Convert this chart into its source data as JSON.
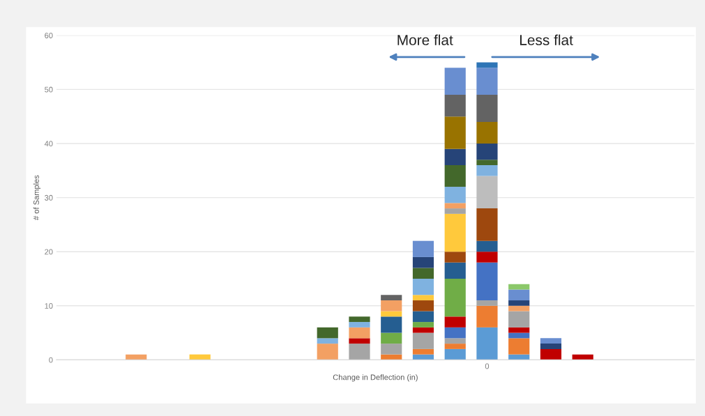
{
  "chart_data": {
    "type": "bar",
    "stacked": true,
    "xlabel": "Change in Deflection (in)",
    "ylabel": "# of Samples",
    "categories": [
      null,
      null,
      null,
      null,
      null,
      null,
      null,
      null,
      null,
      null,
      null,
      null,
      null,
      "0",
      null,
      null,
      null,
      null,
      null,
      null
    ],
    "ylim": [
      0,
      60
    ],
    "yticks": [
      0,
      10,
      20,
      30,
      40,
      50,
      60
    ],
    "grid": "y",
    "annotations": [
      "More flat",
      "Less flat"
    ],
    "series": [
      {
        "values": [
          null,
          null,
          1,
          null,
          1,
          null,
          null,
          null,
          3,
          3,
          1,
          1,
          2,
          6,
          1,
          2,
          1,
          null,
          null,
          null
        ],
        "colors": [
          null,
          null,
          "#f3a063",
          null,
          "#ffc93c",
          null,
          null,
          null,
          "#f3a063",
          "#a5a5a5",
          "#ed7d31",
          "#5b9bd5",
          "#5b9bd5",
          "#5b9bd5",
          "#5b9bd5",
          "#c00000",
          "#c00000",
          null,
          null,
          null
        ]
      },
      {
        "values": [
          null,
          null,
          null,
          null,
          null,
          null,
          null,
          null,
          1,
          1,
          2,
          1,
          1,
          4,
          3,
          1,
          null,
          null,
          null,
          null
        ],
        "colors": [
          null,
          null,
          null,
          null,
          null,
          null,
          null,
          null,
          "#7fb2e0",
          "#c00000",
          "#a5a5a5",
          "#ed7d31",
          "#ed7d31",
          "#ed7d31",
          "#ed7d31",
          "#264478",
          null,
          null,
          null,
          null
        ]
      },
      {
        "values": [
          null,
          null,
          null,
          null,
          null,
          null,
          null,
          null,
          2,
          2,
          2,
          3,
          1,
          1,
          1,
          1,
          null,
          null,
          null,
          null
        ],
        "colors": [
          null,
          null,
          null,
          null,
          null,
          null,
          null,
          null,
          "#43682b",
          "#f3a063",
          "#70ad47",
          "#a5a5a5",
          "#a5a5a5",
          "#a5a5a5",
          "#4472c4",
          "#698ed0",
          null,
          null,
          null,
          null
        ]
      },
      {
        "values": [
          null,
          null,
          null,
          null,
          null,
          null,
          null,
          null,
          null,
          1,
          3,
          1,
          2,
          7,
          1,
          null,
          null,
          null,
          null,
          null
        ],
        "colors": [
          null,
          null,
          null,
          null,
          null,
          null,
          null,
          null,
          null,
          "#7fb2e0",
          "#255e91",
          "#c00000",
          "#4472c4",
          "#4472c4",
          "#c00000",
          null,
          null,
          null,
          null,
          null
        ]
      },
      {
        "values": [
          null,
          null,
          null,
          null,
          null,
          null,
          null,
          null,
          null,
          1,
          1,
          1,
          2,
          2,
          3,
          null,
          null,
          null,
          null,
          null
        ],
        "colors": [
          null,
          null,
          null,
          null,
          null,
          null,
          null,
          null,
          null,
          "#43682b",
          "#ffc93c",
          "#70ad47",
          "#c00000",
          "#c00000",
          "#a5a5a5",
          null,
          null,
          null,
          null,
          null
        ]
      },
      {
        "values": [
          null,
          null,
          null,
          null,
          null,
          null,
          null,
          null,
          null,
          null,
          2,
          2,
          7,
          2,
          1,
          null,
          null,
          null,
          null,
          null
        ],
        "colors": [
          null,
          null,
          null,
          null,
          null,
          null,
          null,
          null,
          null,
          null,
          "#f3a063",
          "#255e91",
          "#70ad47",
          "#255e91",
          "#f3a063",
          null,
          null,
          null,
          null,
          null
        ]
      },
      {
        "values": [
          null,
          null,
          null,
          null,
          null,
          null,
          null,
          null,
          null,
          null,
          1,
          2,
          3,
          6,
          1,
          null,
          null,
          null,
          null,
          null
        ],
        "colors": [
          null,
          null,
          null,
          null,
          null,
          null,
          null,
          null,
          null,
          null,
          "#636363",
          "#9e480e",
          "#255e91",
          "#9e480e",
          "#264478",
          null,
          null,
          null,
          null,
          null
        ]
      },
      {
        "values": [
          null,
          null,
          null,
          null,
          null,
          null,
          null,
          null,
          null,
          null,
          null,
          1,
          2,
          6,
          2,
          null,
          null,
          null,
          null,
          null
        ],
        "colors": [
          null,
          null,
          null,
          null,
          null,
          null,
          null,
          null,
          null,
          null,
          null,
          "#ffc93c",
          "#9e480e",
          "#bdbdbd",
          "#698ed0",
          null,
          null,
          null,
          null,
          null
        ]
      },
      {
        "values": [
          null,
          null,
          null,
          null,
          null,
          null,
          null,
          null,
          null,
          null,
          null,
          3,
          7,
          2,
          1,
          null,
          null,
          null,
          null,
          null
        ],
        "colors": [
          null,
          null,
          null,
          null,
          null,
          null,
          null,
          null,
          null,
          null,
          null,
          "#7fb2e0",
          "#ffc93c",
          "#7fb2e0",
          "#8bc86a",
          null,
          null,
          null,
          null,
          null
        ]
      },
      {
        "values": [
          null,
          null,
          null,
          null,
          null,
          null,
          null,
          null,
          null,
          null,
          null,
          2,
          1,
          1,
          null,
          null,
          null,
          null,
          null,
          null
        ],
        "colors": [
          null,
          null,
          null,
          null,
          null,
          null,
          null,
          null,
          null,
          null,
          null,
          "#43682b",
          "#a5a5a5",
          "#43682b",
          null,
          null,
          null,
          null,
          null,
          null
        ]
      },
      {
        "values": [
          null,
          null,
          null,
          null,
          null,
          null,
          null,
          null,
          null,
          null,
          null,
          2,
          1,
          3,
          null,
          null,
          null,
          null,
          null,
          null
        ],
        "colors": [
          null,
          null,
          null,
          null,
          null,
          null,
          null,
          null,
          null,
          null,
          null,
          "#264478",
          "#f3a063",
          "#264478",
          null,
          null,
          null,
          null,
          null,
          null
        ]
      },
      {
        "values": [
          null,
          null,
          null,
          null,
          null,
          null,
          null,
          null,
          null,
          null,
          null,
          3,
          3,
          4,
          null,
          null,
          null,
          null,
          null,
          null
        ],
        "colors": [
          null,
          null,
          null,
          null,
          null,
          null,
          null,
          null,
          null,
          null,
          null,
          "#698ed0",
          "#7fb2e0",
          "#997300",
          null,
          null,
          null,
          null,
          null,
          null
        ]
      },
      {
        "values": [
          null,
          null,
          null,
          null,
          null,
          null,
          null,
          null,
          null,
          null,
          null,
          null,
          4,
          5,
          null,
          null,
          null,
          null,
          null,
          null
        ],
        "colors": [
          null,
          null,
          null,
          null,
          null,
          null,
          null,
          null,
          null,
          null,
          null,
          null,
          "#43682b",
          "#636363",
          null,
          null,
          null,
          null,
          null,
          null
        ]
      },
      {
        "values": [
          null,
          null,
          null,
          null,
          null,
          null,
          null,
          null,
          null,
          null,
          null,
          null,
          3,
          5,
          null,
          null,
          null,
          null,
          null,
          null
        ],
        "colors": [
          null,
          null,
          null,
          null,
          null,
          null,
          null,
          null,
          null,
          null,
          null,
          null,
          "#264478",
          "#698ed0",
          null,
          null,
          null,
          null,
          null,
          null
        ]
      },
      {
        "values": [
          null,
          null,
          null,
          null,
          null,
          null,
          null,
          null,
          null,
          null,
          null,
          null,
          6,
          1,
          null,
          null,
          null,
          null,
          null,
          null
        ],
        "colors": [
          null,
          null,
          null,
          null,
          null,
          null,
          null,
          null,
          null,
          null,
          null,
          null,
          "#997300",
          "#2e75b6",
          null,
          null,
          null,
          null,
          null,
          null
        ]
      },
      {
        "values": [
          null,
          null,
          null,
          null,
          null,
          null,
          null,
          null,
          null,
          null,
          null,
          null,
          4,
          null,
          null,
          null,
          null,
          null,
          null,
          null
        ],
        "colors": [
          null,
          null,
          null,
          null,
          null,
          null,
          null,
          null,
          null,
          null,
          null,
          null,
          "#636363",
          null,
          null,
          null,
          null,
          null,
          null,
          null
        ]
      },
      {
        "values": [
          null,
          null,
          null,
          null,
          null,
          null,
          null,
          null,
          null,
          null,
          null,
          null,
          5,
          null,
          null,
          null,
          null,
          null,
          null,
          null
        ],
        "colors": [
          null,
          null,
          null,
          null,
          null,
          null,
          null,
          null,
          null,
          null,
          null,
          null,
          "#698ed0",
          null,
          null,
          null,
          null,
          null,
          null,
          null
        ]
      }
    ]
  }
}
